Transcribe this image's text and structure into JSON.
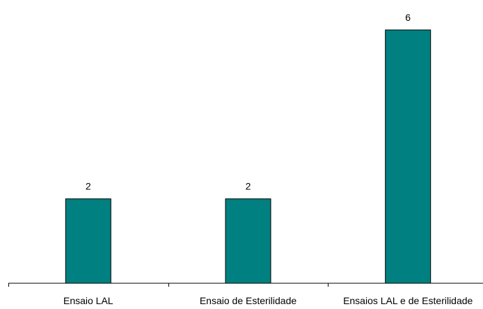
{
  "chart_data": {
    "type": "bar",
    "categories": [
      "Ensaio LAL",
      "Ensaio de Esterilidade",
      "Ensaios LAL e de Esterilidade"
    ],
    "values": [
      2,
      2,
      6
    ],
    "data_labels": [
      "2",
      "2",
      "6"
    ],
    "ylim": [
      0,
      6
    ],
    "grid": false,
    "legend": "none",
    "colors": {
      "bar_fill": "#008080",
      "bar_stroke": "#000000",
      "axis": "#000000"
    }
  }
}
